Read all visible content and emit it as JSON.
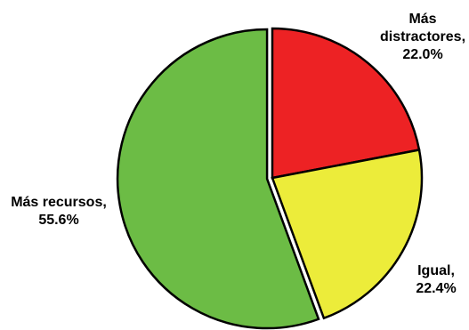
{
  "chart_data": {
    "type": "pie",
    "title": "",
    "slices": [
      {
        "label_lines": [
          "Más",
          "distractores,"
        ],
        "value_label": "22.0%",
        "value": 22.0,
        "color": "#ed2224",
        "exploded": false
      },
      {
        "label_lines": [
          "Igual,"
        ],
        "value_label": "22.4%",
        "value": 22.4,
        "color": "#ecec3a",
        "exploded": false
      },
      {
        "label_lines": [
          "Más recursos,"
        ],
        "value_label": "55.6%",
        "value": 55.6,
        "color": "#6cbc45",
        "exploded": true
      }
    ],
    "start_angle_deg": 0,
    "direction": "clockwise",
    "legend": "none",
    "data_labels": "outside"
  }
}
